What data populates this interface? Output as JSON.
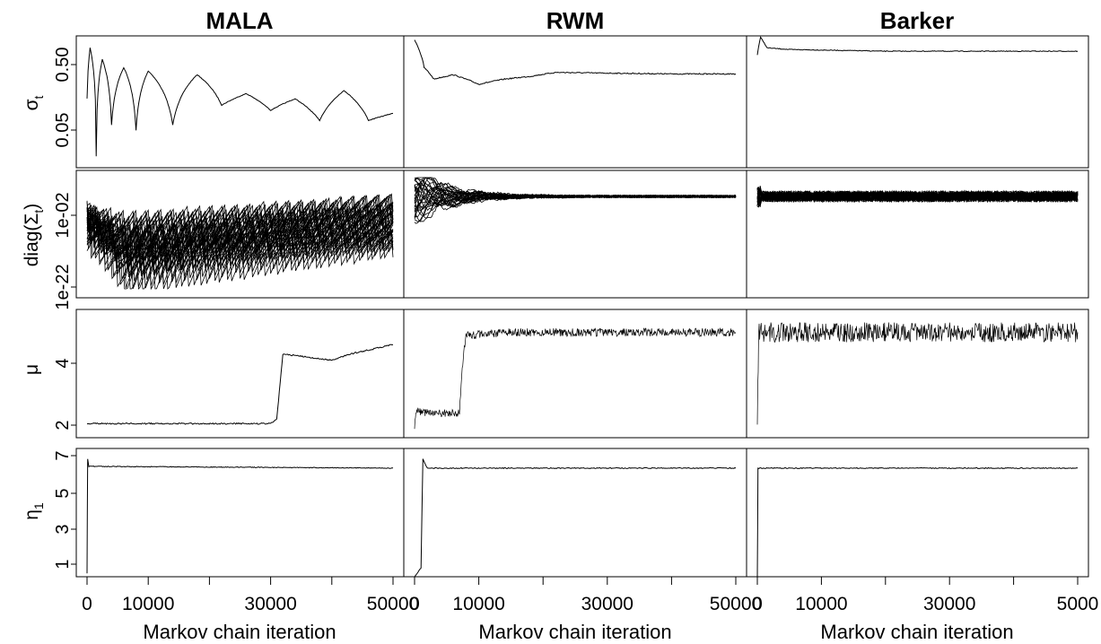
{
  "colors": {
    "line": "#000000",
    "background": "#ffffff",
    "frame": "#000000"
  },
  "columns": [
    {
      "title": "MALA"
    },
    {
      "title": "RWM"
    },
    {
      "title": "Barker"
    }
  ],
  "rows": [
    {
      "ylabel": "σ",
      "ylabel_sub": "t"
    },
    {
      "ylabel": "diag(Σ",
      "ylabel_sub": "t",
      "ylabel_after": ")"
    },
    {
      "ylabel": "μ",
      "ylabel_sub": ""
    },
    {
      "ylabel": "η",
      "ylabel_sub": "1"
    }
  ],
  "xaxis": {
    "label": "Markov chain iteration",
    "range": [
      0,
      50000
    ],
    "tick_values": [
      0,
      10000,
      20000,
      30000,
      40000,
      50000
    ],
    "tick_labels": [
      "0",
      "10000",
      "",
      "30000",
      "",
      "50000"
    ],
    "barker_last_label": "5000"
  },
  "chart_data": [
    {
      "panel": "MALA-sigma",
      "type": "line",
      "ylabel": "σt",
      "yscale": "log",
      "yticks": [
        "0.05",
        "0.50"
      ],
      "ylim_note": "log scale",
      "series": [
        {
          "x": [
            0,
            500,
            1500,
            2500,
            4000,
            6000,
            8000,
            10000,
            14000,
            18000,
            22000,
            26000,
            30000,
            34000,
            38000,
            42000,
            46000,
            48000,
            50000
          ],
          "y": [
            0.15,
            0.9,
            0.02,
            0.6,
            0.06,
            0.45,
            0.05,
            0.4,
            0.06,
            0.35,
            0.12,
            0.18,
            0.1,
            0.15,
            0.07,
            0.2,
            0.07,
            0.08,
            0.09
          ]
        }
      ]
    },
    {
      "panel": "RWM-sigma",
      "type": "line",
      "ylabel": "σt",
      "yscale": "log",
      "series": [
        {
          "x": [
            0,
            1500,
            3000,
            6000,
            10000,
            14000,
            18000,
            22000,
            30000,
            40000,
            50000
          ],
          "y": [
            1.2,
            0.45,
            0.3,
            0.35,
            0.25,
            0.3,
            0.33,
            0.38,
            0.37,
            0.36,
            0.36
          ]
        }
      ]
    },
    {
      "panel": "Barker-sigma",
      "type": "line",
      "ylabel": "σt",
      "yscale": "log",
      "series": [
        {
          "x": [
            0,
            500,
            1500,
            5000,
            20000,
            35000,
            50000
          ],
          "y": [
            0.7,
            1.3,
            0.9,
            0.85,
            0.8,
            0.8,
            0.8
          ]
        }
      ]
    },
    {
      "panel": "MALA-diag",
      "type": "line",
      "ylabel": "diag(Σt)",
      "yscale": "log",
      "yticks": [
        "1e-22",
        "1e-02"
      ],
      "description_series_count": 40,
      "series": [
        {
          "x": [
            0,
            50000
          ],
          "y": [
            0.01,
            0.005
          ]
        }
      ]
    },
    {
      "panel": "MALA-mu",
      "type": "line",
      "ylabel": "μ",
      "yticks": [
        2,
        4
      ],
      "series": [
        {
          "x": [
            0,
            30000,
            31000,
            32000,
            40000,
            43000,
            50000
          ],
          "y": [
            2.05,
            2.05,
            2.2,
            4.3,
            4.1,
            4.3,
            4.6
          ]
        }
      ]
    },
    {
      "panel": "RWM-mu",
      "type": "line",
      "ylabel": "μ",
      "series": [
        {
          "x": [
            0,
            200,
            1000,
            7000,
            7500,
            8000,
            15000,
            50000
          ],
          "y": [
            2.0,
            2.5,
            2.4,
            2.4,
            4.0,
            4.9,
            5.0,
            5.0
          ]
        }
      ]
    },
    {
      "panel": "Barker-mu",
      "type": "line",
      "ylabel": "μ",
      "series": [
        {
          "x": [
            0,
            200,
            50000
          ],
          "y": [
            2.1,
            5.0,
            5.0
          ]
        }
      ]
    },
    {
      "panel": "MALA-eta",
      "type": "line",
      "ylabel": "η1",
      "yticks": [
        1,
        3,
        5,
        7
      ],
      "series": [
        {
          "x": [
            0,
            100,
            300,
            50000
          ],
          "y": [
            0.5,
            6.8,
            6.4,
            6.3
          ]
        }
      ]
    },
    {
      "panel": "RWM-eta",
      "type": "line",
      "ylabel": "η1",
      "series": [
        {
          "x": [
            0,
            1000,
            1300,
            2000,
            50000
          ],
          "y": [
            0.3,
            0.8,
            6.8,
            6.3,
            6.3
          ]
        }
      ]
    },
    {
      "panel": "Barker-eta",
      "type": "line",
      "ylabel": "η1",
      "series": [
        {
          "x": [
            0,
            100,
            50000
          ],
          "y": [
            0.3,
            6.3,
            6.3
          ]
        }
      ]
    }
  ]
}
